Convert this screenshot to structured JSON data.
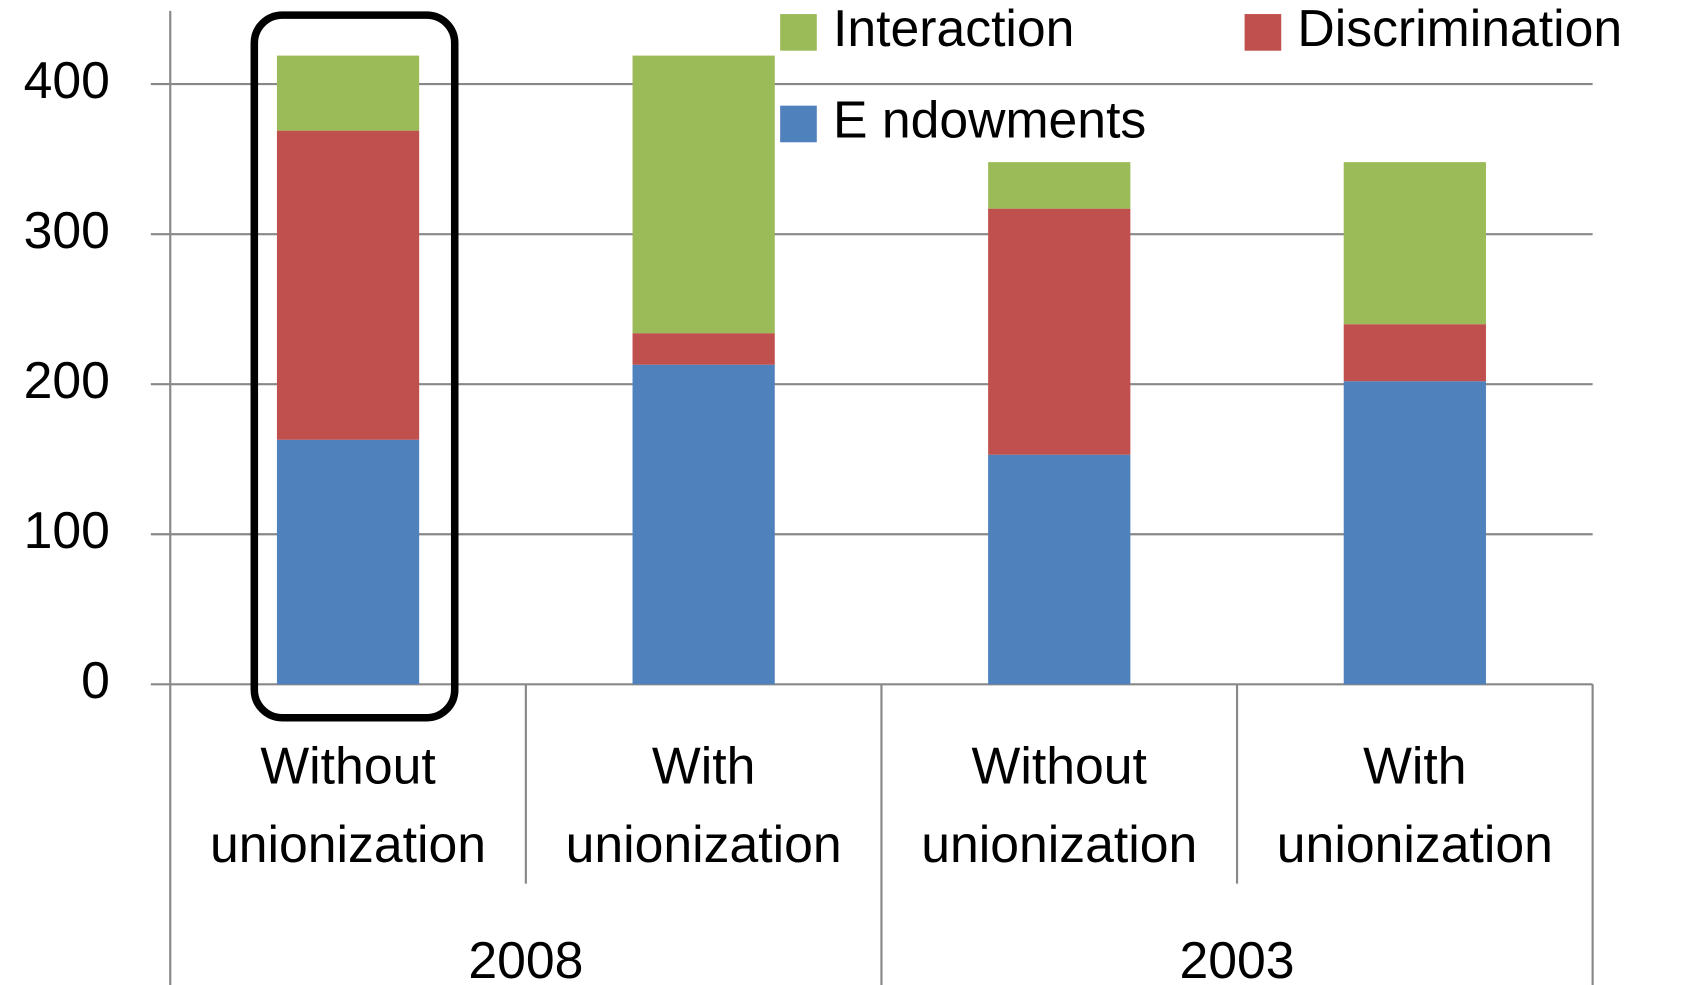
{
  "chart_data": {
    "type": "stacked-bar",
    "categories": [
      "Without unionization",
      "With unionization",
      "Without unionization",
      "With unionization"
    ],
    "groups": [
      "2008",
      "2003"
    ],
    "series": [
      {
        "name": "E ndowments",
        "color": "#4f81bd",
        "values": [
          163,
          213,
          153,
          202
        ]
      },
      {
        "name": "Discrimination",
        "color": "#c0504d",
        "values": [
          206,
          21,
          164,
          38
        ]
      },
      {
        "name": "Interaction",
        "color": "#9bbb59",
        "values": [
          50,
          185,
          31,
          108
        ]
      }
    ],
    "ylim": [
      0,
      450
    ],
    "yticks": [
      0,
      100,
      200,
      300,
      400
    ],
    "grid": true
  }
}
